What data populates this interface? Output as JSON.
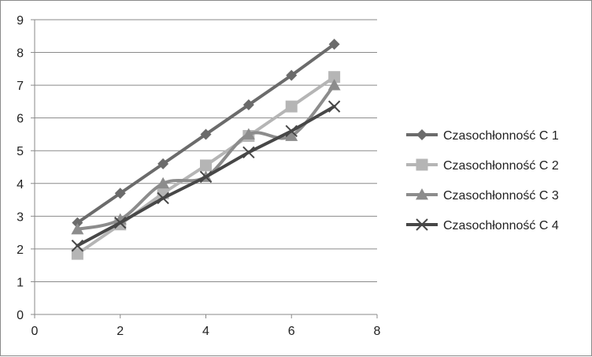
{
  "chart_data": {
    "type": "line",
    "title": "",
    "xlabel": "",
    "ylabel": "",
    "xlim": [
      0,
      8
    ],
    "ylim": [
      0,
      9
    ],
    "x_ticks": [
      0,
      2,
      4,
      6,
      8
    ],
    "y_ticks": [
      0,
      1,
      2,
      3,
      4,
      5,
      6,
      7,
      8,
      9
    ],
    "grid": "horizontal major gridlines",
    "legend_position": "right",
    "series": [
      {
        "name": "Czasochłonność C 1",
        "marker": "diamond",
        "color": "#6b6b6b",
        "smooth": false,
        "x": [
          1,
          2,
          3,
          4,
          5,
          6,
          7
        ],
        "y": [
          2.8,
          3.7,
          4.6,
          5.5,
          6.4,
          7.3,
          8.25
        ]
      },
      {
        "name": "Czasochłonność C 2",
        "marker": "square",
        "color": "#b5b5b5",
        "smooth": false,
        "x": [
          1,
          2,
          3,
          4,
          5,
          6,
          7
        ],
        "y": [
          1.85,
          2.75,
          3.7,
          4.55,
          5.45,
          6.35,
          7.25
        ]
      },
      {
        "name": "Czasochłonność C 3",
        "marker": "triangle",
        "color": "#8c8c8c",
        "smooth": true,
        "x": [
          1,
          2,
          3,
          4,
          5,
          6,
          7
        ],
        "y": [
          2.6,
          2.9,
          4.0,
          4.2,
          5.5,
          5.45,
          7.0
        ]
      },
      {
        "name": "Czasochłonność C 4",
        "marker": "x",
        "color": "#474747",
        "smooth": false,
        "x": [
          1,
          2,
          3,
          4,
          5,
          6,
          7
        ],
        "y": [
          2.1,
          2.8,
          3.55,
          4.2,
          4.95,
          5.6,
          6.35
        ]
      }
    ]
  }
}
